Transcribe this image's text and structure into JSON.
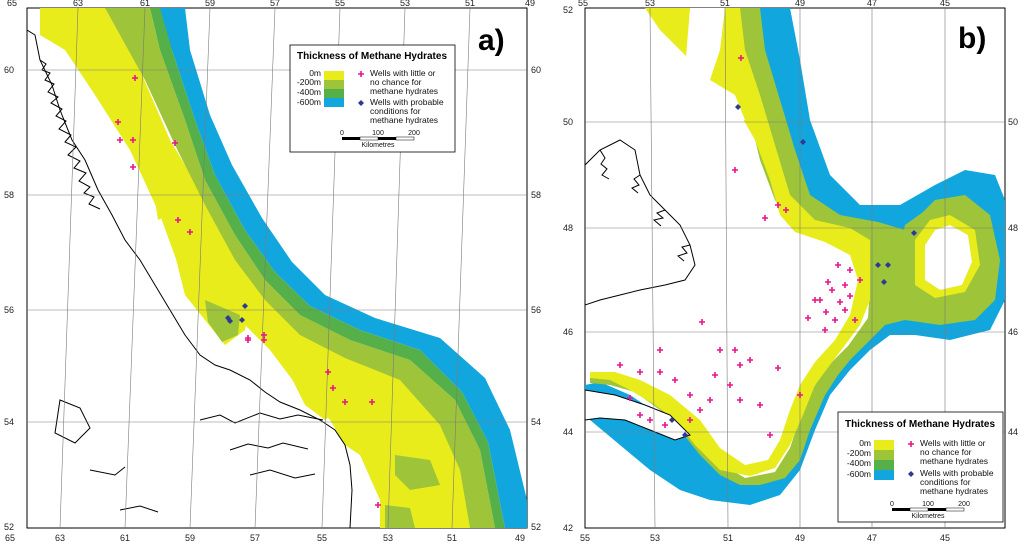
{
  "colors": {
    "h0": "#e8ec1a",
    "h200": "#9ec43a",
    "h400": "#55b04a",
    "h600": "#12a6de",
    "well_little": "#e8158a",
    "well_probable": "#2c3a96"
  },
  "legend": {
    "title": "Thickness of Methane Hydrates",
    "levels": [
      "0m",
      "-200m",
      "-400m",
      "-600m"
    ],
    "little_label_1": "Wells with little or",
    "little_label_2": "no chance for",
    "little_label_3": "methane hydrates",
    "probable_label_1": "Wells with probable",
    "probable_label_2": "conditions for",
    "probable_label_3": "methane hydrates",
    "scale_ticks": [
      "0",
      "100",
      "200"
    ],
    "scale_unit": "Kilometres"
  },
  "panel_a": {
    "letter": "a)",
    "top_ticks": [
      "65",
      "63",
      "61",
      "59",
      "57",
      "55",
      "53",
      "51",
      "49"
    ],
    "bottom_ticks": [
      "65",
      "63",
      "61",
      "59",
      "57",
      "55",
      "53",
      "51",
      "49"
    ],
    "left_ticks": [
      "60",
      "58",
      "56",
      "54",
      "52"
    ],
    "right_ticks": [
      "60",
      "58",
      "56",
      "54",
      "52"
    ]
  },
  "panel_b": {
    "letter": "b)",
    "top_ticks": [
      "55",
      "53",
      "51",
      "49",
      "47",
      "45"
    ],
    "bottom_ticks": [
      "55",
      "53",
      "51",
      "49",
      "47",
      "45"
    ],
    "left_ticks": [
      "52",
      "50",
      "48",
      "46",
      "44",
      "42"
    ],
    "right_ticks": [
      "50",
      "48",
      "46",
      "44"
    ]
  }
}
